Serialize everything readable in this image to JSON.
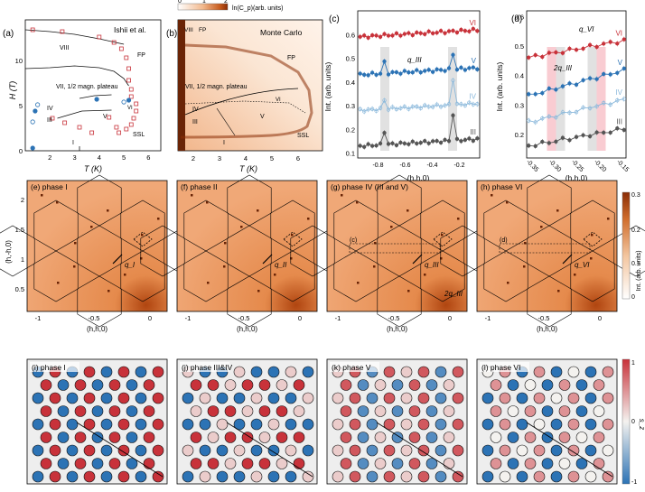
{
  "colors": {
    "orange_dark": "#a0360a",
    "orange_mid": "#d2703a",
    "orange_light": "#f2c8a6",
    "red": "#c8323a",
    "blue": "#2c73b5",
    "light_blue": "#8ab8db",
    "dark_gray": "#555555",
    "pale_red": "#f6b6bf",
    "pale_gray": "#d4d4d4"
  },
  "panel_a": {
    "label": "(a)",
    "note": "Ishii et al.",
    "xlabel": "T (K)",
    "ylabel": "H (T)",
    "phases": [
      "VIII",
      "FP",
      "VII, 1/2 magn. plateau",
      "VI",
      "IV",
      "V",
      "III",
      "I",
      "SSL"
    ]
  },
  "panel_b": {
    "label": "(b)",
    "note": "Monte Carlo",
    "xlabel": "T (K)",
    "colorbar_label": "ln(C_p)(arb. units)",
    "colorbar_ticks": [
      "0",
      "1",
      "2"
    ],
    "phases": [
      "VIII",
      "FP",
      "FP",
      "VII, 1/2 magn. plateau",
      "VI",
      "IV",
      "V",
      "III",
      "I",
      "SSL"
    ]
  },
  "chart_data": [
    {
      "id": "a",
      "type": "line",
      "xlabel": "T (K)",
      "ylabel": "H (T)",
      "xlim": [
        1,
        6.5
      ],
      "ylim": [
        0,
        14.5
      ],
      "xticks": [
        2,
        3,
        4,
        5,
        6
      ],
      "yticks": [
        0,
        5,
        10
      ],
      "series": [
        {
          "x": [
            1,
            2,
            3,
            4,
            5
          ],
          "y": [
            13.4,
            13.2,
            12.9,
            12.4,
            11.8
          ]
        },
        {
          "x": [
            1,
            2,
            3,
            4,
            4.6,
            5.0,
            5.2
          ],
          "y": [
            9.1,
            9.2,
            9.4,
            9.2,
            8.8,
            8.0,
            7.2
          ]
        },
        {
          "x": [
            3.2,
            3.8,
            4.5
          ],
          "y": [
            5.8,
            6.1,
            6.2
          ]
        },
        {
          "x": [
            2.3,
            3.3,
            4.5
          ],
          "y": [
            3.6,
            4.4,
            4.5
          ]
        },
        {
          "x": [
            3.2,
            3.2
          ],
          "y": [
            0.0,
            0.5
          ]
        }
      ],
      "markers_red": [
        [
          1.3,
          13.4
        ],
        [
          2.5,
          13.2
        ],
        [
          4.0,
          12.6
        ],
        [
          4.6,
          12.0
        ],
        [
          4.9,
          11.3
        ],
        [
          5.1,
          10.3
        ],
        [
          5.2,
          9.1
        ],
        [
          5.2,
          7.8
        ],
        [
          5.3,
          6.8
        ],
        [
          5.3,
          6.0
        ],
        [
          5.5,
          5.2
        ],
        [
          5.5,
          4.4
        ],
        [
          5.4,
          3.6
        ],
        [
          5.3,
          2.9
        ],
        [
          5.1,
          2.4
        ],
        [
          4.8,
          2.0
        ],
        [
          3.7,
          2.0
        ],
        [
          3.2,
          2.6
        ],
        [
          2.6,
          3.1
        ],
        [
          2.1,
          3.6
        ],
        [
          4.4,
          3.7
        ],
        [
          4.7,
          2.6
        ]
      ],
      "markers_blue": [
        [
          1.3,
          0.3
        ],
        [
          1.3,
          3.2
        ],
        [
          1.4,
          4.4
        ],
        [
          1.5,
          5.1
        ],
        [
          3.9,
          5.7
        ],
        [
          5.0,
          5.4
        ],
        [
          5.2,
          5.6
        ]
      ]
    },
    {
      "id": "c",
      "type": "line",
      "xlabel": "(h,h,0)",
      "ylabel": "Int. (arb. units)",
      "xlim": [
        -0.95,
        -0.05
      ],
      "ylim": [
        0.08,
        0.7
      ],
      "xticks": [
        -0.8,
        -0.6,
        -0.4,
        -0.2
      ],
      "yticks": [
        0.1,
        0.2,
        0.3,
        0.4,
        0.5,
        0.6
      ],
      "series": [
        {
          "name": "VI",
          "base": 0.59,
          "slope": 0.03,
          "peaks": []
        },
        {
          "name": "V",
          "base": 0.43,
          "slope": 0.03,
          "peaks": [
            {
              "x": -0.75,
              "h": 0.05
            },
            {
              "x": -0.25,
              "h": 0.07
            }
          ]
        },
        {
          "name": "IV",
          "base": 0.28,
          "slope": 0.03,
          "peaks": [
            {
              "x": -0.75,
              "h": 0.04
            },
            {
              "x": -0.25,
              "h": 0.12
            }
          ]
        },
        {
          "name": "III",
          "base": 0.13,
          "slope": 0.03,
          "peaks": [
            {
              "x": -0.75,
              "h": 0.06
            },
            {
              "x": -0.25,
              "h": 0.12
            }
          ]
        }
      ],
      "annotation": "q_III"
    },
    {
      "id": "d",
      "type": "line",
      "xlabel": "(h,h,0)",
      "ylabel": "Int. (arb. units)",
      "xlim": [
        -0.36,
        -0.14
      ],
      "ylim": [
        0.12,
        0.62
      ],
      "xticks": [
        -0.35,
        -0.3,
        -0.25,
        -0.2,
        -0.15
      ],
      "series": [
        {
          "name": "VI",
          "base": 0.46,
          "slope": 0.06,
          "peaks": [
            {
              "x": -0.305,
              "h": 0.025
            },
            {
              "x": -0.195,
              "h": 0.06
            }
          ]
        },
        {
          "name": "V",
          "base": 0.33,
          "slope": 0.09,
          "peaks": [
            {
              "x": -0.285,
              "h": 0.04
            },
            {
              "x": -0.215,
              "h": 0.05
            }
          ]
        },
        {
          "name": "IV",
          "base": 0.24,
          "slope": 0.08,
          "peaks": [
            {
              "x": -0.285,
              "h": 0.04
            },
            {
              "x": -0.215,
              "h": 0.06
            }
          ]
        },
        {
          "name": "III",
          "base": 0.16,
          "slope": 0.06,
          "peaks": [
            {
              "x": -0.285,
              "h": 0.03
            },
            {
              "x": -0.215,
              "h": 0.04
            }
          ]
        }
      ],
      "annotations": [
        "q_VI",
        "2q_III"
      ]
    }
  ],
  "panel_c": {
    "label": "(c)",
    "ylabel": "Int. (arb. units)",
    "xlabel": "(h,h,0)",
    "annotation": "q_III"
  },
  "panel_d": {
    "label": "(d)",
    "ylabel": "Int. (arb. units)",
    "xlabel": "(h,h,0)",
    "annotation_vi": "q_VI",
    "annotation_2q": "2q_III"
  },
  "maps": {
    "ylabel": "(h,-h,0)",
    "xlabel": "(h,h,0)",
    "xticks": [
      "-1",
      "-0.5",
      "0"
    ],
    "yticks": [
      "0.5",
      "1",
      "1.5",
      "2"
    ],
    "colorbar_label": "Int. (arb. units)",
    "colorbar_ticks": [
      "0.3",
      "0.2",
      "0.1",
      "0"
    ],
    "panels": [
      {
        "label": "(e) phase I",
        "q": "q_I"
      },
      {
        "label": "(f) phase II",
        "q": "q_II"
      },
      {
        "label": "(g) phase IV (III and V)",
        "q": "q_III",
        "q2": "2q_III",
        "box": "(c)"
      },
      {
        "label": "(h) phase VI",
        "q": "q_VI",
        "box": "(d)"
      }
    ]
  },
  "lattices": {
    "colorbar_label": "s_z",
    "colorbar_ticks": [
      "1",
      "0",
      "-1"
    ],
    "panels": [
      {
        "label": "(i) phase I"
      },
      {
        "label": "(j) phase III&IV"
      },
      {
        "label": "(k) phase V"
      },
      {
        "label": "(l) phase VI"
      }
    ]
  }
}
